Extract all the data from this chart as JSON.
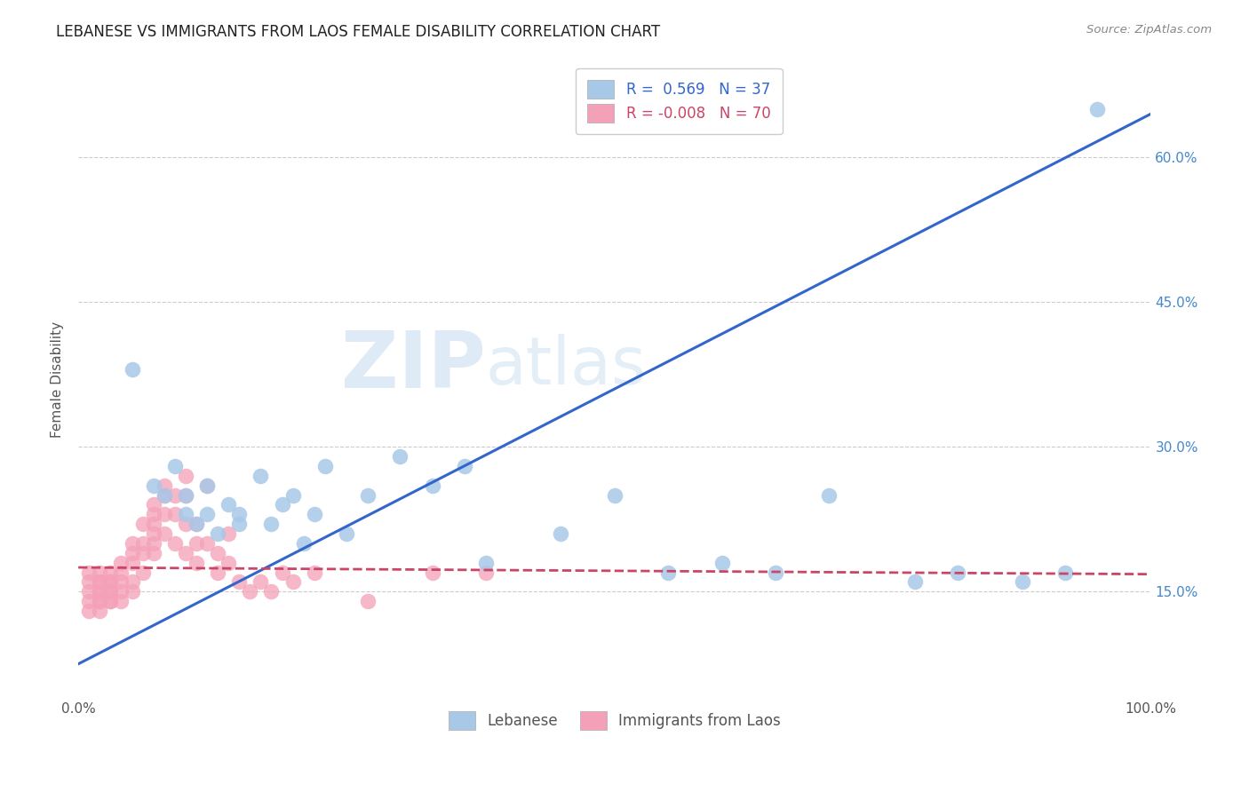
{
  "title": "LEBANESE VS IMMIGRANTS FROM LAOS FEMALE DISABILITY CORRELATION CHART",
  "source": "Source: ZipAtlas.com",
  "ylabel": "Female Disability",
  "legend_label1": "Lebanese",
  "legend_label2": "Immigrants from Laos",
  "watermark_zip": "ZIP",
  "watermark_atlas": "atlas",
  "r1": 0.569,
  "n1": 37,
  "r2": -0.008,
  "n2": 70,
  "color1": "#a8c8e8",
  "color2": "#f4a0b8",
  "line1_color": "#3366cc",
  "line2_color": "#cc4466",
  "yticks": [
    0.15,
    0.3,
    0.45,
    0.6
  ],
  "ytick_labels": [
    "15.0%",
    "30.0%",
    "45.0%",
    "60.0%"
  ],
  "xlim": [
    0.0,
    1.0
  ],
  "ylim": [
    0.04,
    0.7
  ],
  "line1_x0": 0.0,
  "line1_y0": 0.075,
  "line1_x1": 1.0,
  "line1_y1": 0.645,
  "line2_x0": 0.0,
  "line2_y0": 0.175,
  "line2_x1": 1.0,
  "line2_y1": 0.168,
  "scatter1_x": [
    0.05,
    0.07,
    0.08,
    0.09,
    0.1,
    0.1,
    0.11,
    0.12,
    0.12,
    0.13,
    0.14,
    0.15,
    0.15,
    0.17,
    0.18,
    0.19,
    0.2,
    0.21,
    0.22,
    0.23,
    0.25,
    0.27,
    0.3,
    0.33,
    0.36,
    0.38,
    0.45,
    0.5,
    0.55,
    0.6,
    0.65,
    0.7,
    0.78,
    0.82,
    0.88,
    0.92,
    0.95
  ],
  "scatter1_y": [
    0.38,
    0.26,
    0.25,
    0.28,
    0.25,
    0.23,
    0.22,
    0.26,
    0.23,
    0.21,
    0.24,
    0.23,
    0.22,
    0.27,
    0.22,
    0.24,
    0.25,
    0.2,
    0.23,
    0.28,
    0.21,
    0.25,
    0.29,
    0.26,
    0.28,
    0.18,
    0.21,
    0.25,
    0.17,
    0.18,
    0.17,
    0.25,
    0.16,
    0.17,
    0.16,
    0.17,
    0.65
  ],
  "scatter2_x": [
    0.01,
    0.01,
    0.01,
    0.01,
    0.01,
    0.02,
    0.02,
    0.02,
    0.02,
    0.02,
    0.02,
    0.02,
    0.02,
    0.03,
    0.03,
    0.03,
    0.03,
    0.03,
    0.03,
    0.03,
    0.04,
    0.04,
    0.04,
    0.04,
    0.04,
    0.05,
    0.05,
    0.05,
    0.05,
    0.05,
    0.06,
    0.06,
    0.06,
    0.06,
    0.07,
    0.07,
    0.07,
    0.07,
    0.07,
    0.07,
    0.08,
    0.08,
    0.08,
    0.08,
    0.09,
    0.09,
    0.09,
    0.1,
    0.1,
    0.1,
    0.1,
    0.11,
    0.11,
    0.11,
    0.12,
    0.12,
    0.13,
    0.13,
    0.14,
    0.14,
    0.15,
    0.16,
    0.17,
    0.18,
    0.19,
    0.2,
    0.22,
    0.27,
    0.33,
    0.38
  ],
  "scatter2_y": [
    0.17,
    0.16,
    0.15,
    0.14,
    0.13,
    0.17,
    0.16,
    0.16,
    0.15,
    0.15,
    0.14,
    0.14,
    0.13,
    0.17,
    0.16,
    0.16,
    0.15,
    0.15,
    0.14,
    0.14,
    0.18,
    0.17,
    0.16,
    0.15,
    0.14,
    0.2,
    0.19,
    0.18,
    0.16,
    0.15,
    0.22,
    0.2,
    0.19,
    0.17,
    0.24,
    0.23,
    0.22,
    0.21,
    0.2,
    0.19,
    0.26,
    0.25,
    0.23,
    0.21,
    0.25,
    0.23,
    0.2,
    0.27,
    0.25,
    0.22,
    0.19,
    0.22,
    0.2,
    0.18,
    0.26,
    0.2,
    0.19,
    0.17,
    0.21,
    0.18,
    0.16,
    0.15,
    0.16,
    0.15,
    0.17,
    0.16,
    0.17,
    0.14,
    0.17,
    0.17
  ]
}
